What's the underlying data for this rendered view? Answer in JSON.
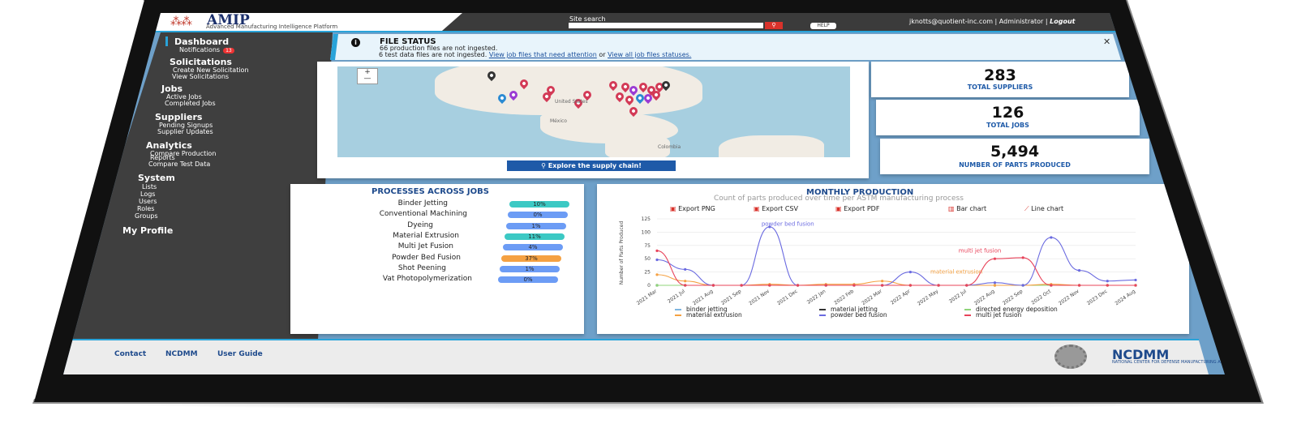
{
  "header": {
    "app_title": "AMIP",
    "app_subtitle": "Advanced Manufacturing Intelligence Platform",
    "site_search_label": "Site search",
    "site_search_value": "",
    "help_label": "HELP",
    "user": "jknotts@quotient-inc.com",
    "role": "Administrator",
    "logout": "Logout",
    "separator": "|"
  },
  "sidebar": {
    "dashboard": "Dashboard",
    "notifications": "Notifications",
    "notifications_count": "13",
    "solicitations": "Solicitations",
    "create_solicitation": "Create New Solicitation",
    "view_solicitations": "View Solicitations",
    "jobs": "Jobs",
    "active_jobs": "Active Jobs",
    "completed_jobs": "Completed Jobs",
    "suppliers": "Suppliers",
    "pending_signups": "Pending Signups",
    "supplier_updates": "Supplier Updates",
    "analytics": "Analytics",
    "compare_production": "Compare Production",
    "compare_production_2": "Reports",
    "compare_test": "Compare Test Data",
    "system": "System",
    "lists": "Lists",
    "logs": "Logs",
    "users": "Users",
    "roles": "Roles",
    "groups": "Groups",
    "my_profile": "My Profile"
  },
  "file_status": {
    "title": "FILE STATUS",
    "line1": "66 production files are not ingested.",
    "line2_prefix": "6 test data files are not ingested.",
    "link1": "View job files that need attention",
    "or": "or",
    "link2": "View all job files statuses."
  },
  "map": {
    "labels": {
      "us": "United States",
      "mexico": "México",
      "colombia": "Colombia"
    },
    "explore_label": "Explore the supply chain!",
    "zoom_in": "+",
    "zoom_out": "—"
  },
  "stats": [
    {
      "value": "283",
      "label": "TOTAL SUPPLIERS"
    },
    {
      "value": "126",
      "label": "TOTAL JOBS"
    },
    {
      "value": "5,494",
      "label": "NUMBER OF PARTS PRODUCED"
    }
  ],
  "processes": {
    "title": "PROCESSES ACROSS JOBS",
    "items": [
      {
        "name": "Binder Jetting",
        "pct": "10%",
        "color": "#3cc9c4"
      },
      {
        "name": "Conventional Machining",
        "pct": "0%",
        "color": "#6c9cf5"
      },
      {
        "name": "Dyeing",
        "pct": "1%",
        "color": "#6c9cf5"
      },
      {
        "name": "Material Extrusion",
        "pct": "11%",
        "color": "#3cc9c4"
      },
      {
        "name": "Multi Jet Fusion",
        "pct": "4%",
        "color": "#6c9cf5"
      },
      {
        "name": "Powder Bed Fusion",
        "pct": "37%",
        "color": "#f5a142"
      },
      {
        "name": "Shot Peening",
        "pct": "1%",
        "color": "#6c9cf5"
      },
      {
        "name": "Vat Photopolymerization",
        "pct": "0%",
        "color": "#6c9cf5"
      }
    ]
  },
  "monthly": {
    "title": "MONTHLY PRODUCTION",
    "subtitle": "Count of parts produced over time per ASTM manufacturing process",
    "export_png": "Export PNG",
    "export_csv": "Export CSV",
    "export_pdf": "Export PDF",
    "bar_chart": "Bar chart",
    "line_chart": "Line chart"
  },
  "chart_data": {
    "type": "line",
    "title": "MONTHLY PRODUCTION",
    "subtitle": "Count of parts produced over time per ASTM manufacturing process",
    "ylabel": "Number of Parts Produced",
    "xlabel": "",
    "ylim": [
      0,
      125
    ],
    "yticks": [
      0,
      25,
      50,
      75,
      100,
      125
    ],
    "categories": [
      "2021 Mar",
      "2021 Jul",
      "2021 Aug",
      "2021 Sep",
      "2021 Nov",
      "2021 Dec",
      "2022 Jan",
      "2022 Feb",
      "2022 Mar",
      "2022 Apr",
      "2022 May",
      "2022 Jul",
      "2022 Aug",
      "2022 Sep",
      "2022 Oct",
      "2022 Nov",
      "2023 Dec",
      "2024 Aug"
    ],
    "series": [
      {
        "name": "binder jetting",
        "color": "#7fb6e0",
        "values": [
          0,
          0,
          0,
          0,
          0,
          0,
          0,
          0,
          0,
          0,
          0,
          0,
          0,
          0,
          0,
          0,
          0,
          0
        ]
      },
      {
        "name": "material jetting",
        "color": "#333333",
        "values": [
          0,
          0,
          0,
          0,
          0,
          0,
          0,
          0,
          0,
          0,
          0,
          0,
          0,
          0,
          0,
          0,
          0,
          0
        ]
      },
      {
        "name": "directed energy deposition",
        "color": "#8fd47a",
        "values": [
          0,
          0,
          0,
          0,
          0,
          0,
          0,
          0,
          0,
          0,
          0,
          0,
          0,
          0,
          0,
          0,
          0,
          0
        ]
      },
      {
        "name": "material extrusion",
        "color": "#f5a142",
        "values": [
          20,
          8,
          0,
          0,
          2,
          0,
          2,
          2,
          8,
          0,
          0,
          0,
          0,
          0,
          2,
          0,
          0,
          0
        ]
      },
      {
        "name": "powder bed fusion",
        "color": "#6a6ae0",
        "values": [
          48,
          30,
          0,
          0,
          110,
          0,
          0,
          0,
          0,
          25,
          0,
          0,
          5,
          0,
          90,
          28,
          8,
          10
        ]
      },
      {
        "name": "multi jet fusion",
        "color": "#e8435a",
        "values": [
          65,
          0,
          0,
          0,
          0,
          0,
          0,
          0,
          0,
          0,
          0,
          0,
          50,
          52,
          0,
          0,
          0,
          0
        ]
      }
    ],
    "annotations": [
      "powder bed fusion",
      "material extrusion",
      "multi jet fusion"
    ],
    "legend_position": "bottom",
    "grid": true
  },
  "footer": {
    "contact": "Contact",
    "ncdmm": "NCDMM",
    "user_guide": "User Guide",
    "logo_text": "NCDMM",
    "logo_sub": "NATIONAL CENTER FOR DEFENSE MANUFACTURING AND MACHINING"
  }
}
